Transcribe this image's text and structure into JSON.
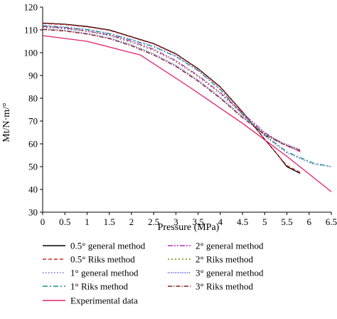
{
  "chart_data": {
    "type": "line",
    "xlabel": "Pressure (MPa)",
    "ylabel": "Mt/N·m/°",
    "xlim": [
      0,
      6.5
    ],
    "ylim": [
      30,
      120
    ],
    "xticks": [
      0,
      0.5,
      1,
      1.5,
      2,
      2.5,
      3,
      3.5,
      4,
      4.5,
      5,
      5.5,
      6,
      6.5
    ],
    "xtick_labels": [
      "0",
      "0.5",
      "1",
      "1.5",
      "2",
      "2.5",
      "3",
      "3.5",
      "4",
      "4.5",
      "5",
      "5.5",
      "6",
      "6.5"
    ],
    "yticks": [
      30,
      40,
      50,
      60,
      70,
      80,
      90,
      100,
      110,
      120
    ],
    "ytick_labels": [
      "30",
      "40",
      "50",
      "60",
      "70",
      "80",
      "90",
      "100",
      "110",
      "120"
    ],
    "grid": false,
    "legend_position": "bottom",
    "series": [
      {
        "name": "0.5° general method",
        "color": "#000000",
        "dash": "solid",
        "x": [
          0,
          0.5,
          1,
          1.5,
          2,
          2.5,
          3,
          3.5,
          4,
          4.5,
          5,
          5.3,
          5.5,
          5.8
        ],
        "y": [
          113,
          112.5,
          111.5,
          110,
          107,
          104,
          99.5,
          93,
          85,
          74,
          62,
          55,
          50,
          47
        ]
      },
      {
        "name": "0.5° Riks method",
        "color": "#d62728",
        "dash": "5,3",
        "x": [
          0,
          0.5,
          1,
          1.5,
          2,
          2.5,
          3,
          3.5,
          4,
          4.5,
          5,
          5.3,
          5.5,
          5.8
        ],
        "y": [
          112.8,
          112.3,
          111.3,
          109.8,
          106.8,
          103.8,
          99.3,
          92.8,
          84.8,
          73.8,
          62,
          55,
          50.5,
          47.5
        ]
      },
      {
        "name": "1° general method",
        "color": "#6a6ad8",
        "dash": "1.5,2.5",
        "x": [
          0,
          0.5,
          1,
          1.5,
          2,
          2.5,
          3,
          3.5,
          4,
          4.5,
          5,
          5.5,
          6.1,
          6.5
        ],
        "y": [
          112,
          111.3,
          110.3,
          108.5,
          105.8,
          102.8,
          98.5,
          92.3,
          84,
          73,
          63.5,
          56,
          51,
          50
        ]
      },
      {
        "name": "1° Riks method",
        "color": "#1a8f8a",
        "dash": "7,3,2,3",
        "x": [
          0,
          0.5,
          1,
          1.5,
          2,
          2.5,
          3,
          3.5,
          4,
          4.5,
          5,
          5.5,
          6.1,
          6.5
        ],
        "y": [
          111.8,
          111.1,
          110.1,
          108.3,
          105.6,
          102.6,
          98.3,
          92.1,
          83.8,
          72.8,
          63.8,
          56.5,
          51.5,
          50
        ]
      },
      {
        "name": "2° general method",
        "color": "#c026c0",
        "dash": "7,2,2,2,2,2",
        "x": [
          0,
          0.5,
          1,
          1.5,
          2,
          2.5,
          3,
          3.5,
          4,
          4.5,
          5,
          5.4,
          5.8
        ],
        "y": [
          111.5,
          110.8,
          109.5,
          107.8,
          105,
          101.5,
          96.5,
          90,
          82.5,
          73.5,
          65,
          60,
          56.5
        ]
      },
      {
        "name": "2° Riks method",
        "color": "#7a8a16",
        "dash": "2,3",
        "x": [
          0,
          0.5,
          1,
          1.5,
          2,
          2.5,
          3,
          3.5,
          4,
          4.5,
          5,
          5.4,
          5.8
        ],
        "y": [
          111.2,
          110.5,
          109.3,
          107.5,
          104.5,
          101,
          96,
          89.5,
          82,
          73,
          64.5,
          60,
          57
        ]
      },
      {
        "name": "3° general method",
        "color": "#3a3ad0",
        "dash": "1,1.5",
        "x": [
          0,
          0.5,
          1,
          1.5,
          2,
          2.5,
          3,
          3.5,
          4,
          4.5,
          5,
          5.4,
          5.8
        ],
        "y": [
          110.5,
          109.8,
          108.5,
          106.5,
          103.5,
          99.5,
          94.5,
          88,
          80.5,
          72,
          64.5,
          60.5,
          57.5
        ]
      },
      {
        "name": "3° Riks method",
        "color": "#8b1a1a",
        "dash": "6,2,1.5,2",
        "x": [
          0,
          0.5,
          1,
          1.5,
          2,
          2.5,
          3,
          3.5,
          4,
          4.5,
          5,
          5.4,
          5.8
        ],
        "y": [
          110.2,
          109.5,
          108.2,
          106.2,
          103,
          99,
          94,
          87.5,
          80,
          71.5,
          64,
          60,
          57
        ]
      },
      {
        "name": "Experimental data",
        "color": "#e0206e",
        "dash": "solid",
        "x": [
          0,
          1,
          2.2,
          3.3,
          4.5,
          5.5,
          6.5
        ],
        "y": [
          107.5,
          105,
          99,
          85,
          69,
          54.5,
          39
        ]
      }
    ]
  }
}
